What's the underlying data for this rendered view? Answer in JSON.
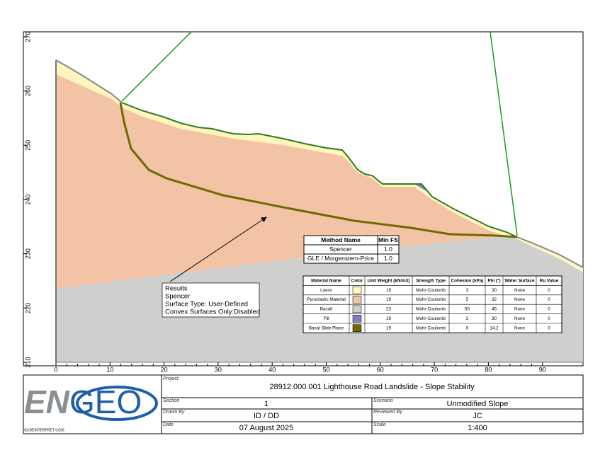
{
  "plot": {
    "xticks": [
      0,
      10,
      20,
      30,
      40,
      50,
      60,
      70,
      80,
      90
    ],
    "yticks": [
      210,
      220,
      230,
      240,
      250,
      260,
      270
    ]
  },
  "method_table": {
    "headers": [
      "Method Name",
      "Min FS"
    ],
    "rows": [
      [
        "Spencer",
        "1.0"
      ],
      [
        "GLE / Morgenstern-Price",
        "1.0"
      ]
    ]
  },
  "material_table": {
    "headers": [
      "Material Name",
      "Color",
      "Unit Weight (kN/m3)",
      "Strength Type",
      "Cohesion (kPa)",
      "Phi (°)",
      "Water Surface",
      "Ru Value"
    ],
    "rows": [
      [
        "Loess",
        "19",
        "Mohr-Coulomb",
        "3",
        "30",
        "None",
        "0"
      ],
      [
        "Pyroclastic Material",
        "19",
        "Mohr-Coulomb",
        "5",
        "32",
        "None",
        "0"
      ],
      [
        "Basalt",
        "23",
        "Mohr-Coulomb",
        "50",
        "45",
        "None",
        "0"
      ],
      [
        "Fill",
        "19",
        "Mohr-Coulomb",
        "2",
        "30",
        "None",
        "0"
      ],
      [
        "Basal Slide Plane",
        "19",
        "Mohr-Coulomb",
        "0",
        "14.2",
        "None",
        "0"
      ]
    ],
    "colors": [
      "#fff5bd",
      "#f3c3a6",
      "#cfcfcf",
      "#7f7fc4",
      "#6e6a00"
    ]
  },
  "results": {
    "lines": [
      "Results",
      "Spencer",
      "Surface Type: User-Defined",
      "Convex Surfaces Only:Disabled"
    ]
  },
  "title_block": {
    "project_label": "Project",
    "project": "28912.000.001 Lighthouse Road Landslide - Slope Stability",
    "section_label": "Section",
    "section": "1",
    "scenario_label": "Scenario",
    "scenario": "Unmodified Slope",
    "drawn_by_label": "Drawn By",
    "drawn_by": "ID / DD",
    "reviewed_by_label": "Reviewed By",
    "reviewed_by": "JC",
    "date_label": "Date",
    "date": "07 August 2025",
    "scale_label": "Scale",
    "scale": "1:400"
  },
  "logo": {
    "en": "EN",
    "geo": "GEO"
  },
  "software": "SLIDEINTERPRET 9.036"
}
